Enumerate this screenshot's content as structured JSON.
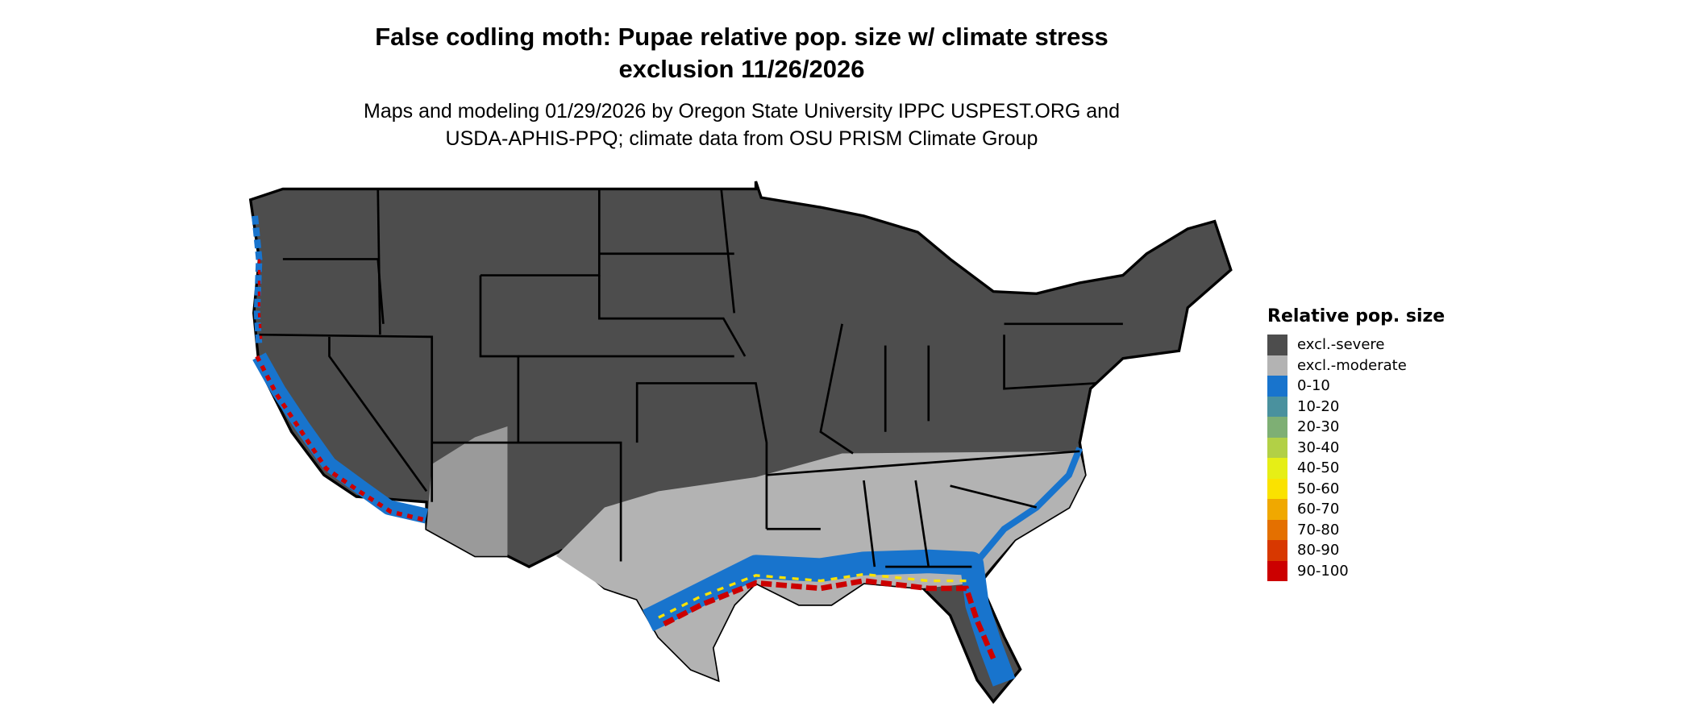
{
  "title": {
    "line1": "False codling moth: Pupae relative pop. size w/ climate stress",
    "line2": "exclusion 11/26/2026"
  },
  "subtitle": {
    "line1": "Maps and modeling 01/29/2026 by Oregon State University IPPC USPEST.ORG and",
    "line2": "USDA-APHIS-PPQ; climate data from OSU PRISM Climate Group"
  },
  "legend": {
    "title": "Relative pop. size",
    "items": [
      {
        "label": "excl.-severe",
        "color": "#4d4d4d"
      },
      {
        "label": "excl.-moderate",
        "color": "#b3b3b3"
      },
      {
        "label": "0-10",
        "color": "#1874cd"
      },
      {
        "label": "10-20",
        "color": "#4a919e"
      },
      {
        "label": "20-30",
        "color": "#7eaf74"
      },
      {
        "label": "30-40",
        "color": "#b2d046"
      },
      {
        "label": "40-50",
        "color": "#e6ee16"
      },
      {
        "label": "50-60",
        "color": "#fae200"
      },
      {
        "label": "60-70",
        "color": "#f0a800"
      },
      {
        "label": "70-80",
        "color": "#e47000"
      },
      {
        "label": "80-90",
        "color": "#d83800"
      },
      {
        "label": "90-100",
        "color": "#cc0000"
      }
    ]
  }
}
